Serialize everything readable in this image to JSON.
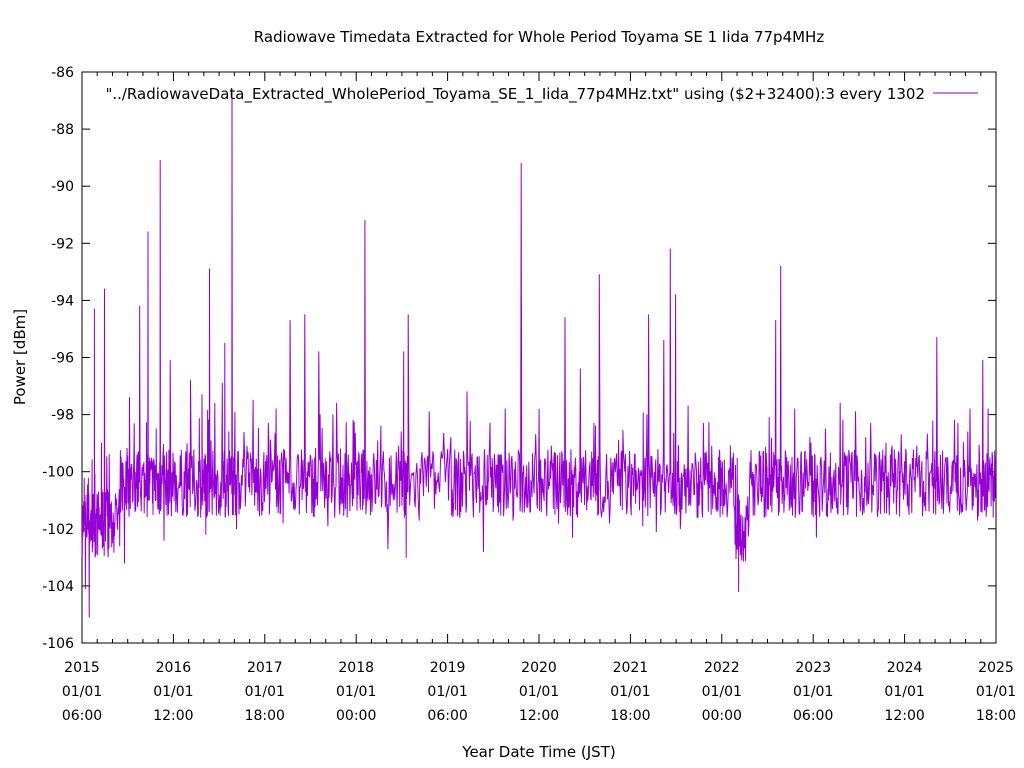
{
  "chart_data": {
    "type": "line",
    "title": "Radiowave Timedata Extracted for Whole Period Toyama SE 1 Iida 77p4MHz",
    "xlabel": "Year Date Time (JST)",
    "ylabel": "Power [dBm]",
    "ylim": [
      -106,
      -86
    ],
    "y_ticks": [
      "-86",
      "-88",
      "-90",
      "-92",
      "-94",
      "-96",
      "-98",
      "-100",
      "-102",
      "-104",
      "-106"
    ],
    "x_ticks": [
      {
        "year": "2015",
        "date": "01/01",
        "time": "06:00"
      },
      {
        "year": "2016",
        "date": "01/01",
        "time": "12:00"
      },
      {
        "year": "2017",
        "date": "01/01",
        "time": "18:00"
      },
      {
        "year": "2018",
        "date": "01/01",
        "time": "00:00"
      },
      {
        "year": "2019",
        "date": "01/01",
        "time": "06:00"
      },
      {
        "year": "2020",
        "date": "01/01",
        "time": "12:00"
      },
      {
        "year": "2021",
        "date": "01/01",
        "time": "18:00"
      },
      {
        "year": "2022",
        "date": "01/01",
        "time": "00:00"
      },
      {
        "year": "2023",
        "date": "01/01",
        "time": "06:00"
      },
      {
        "year": "2024",
        "date": "01/01",
        "time": "12:00"
      },
      {
        "year": "2025",
        "date": "01/01",
        "time": "18:00"
      }
    ],
    "xlim": [
      "2015-01-01 06:00",
      "2025-01-01 18:00"
    ],
    "grid": false,
    "legend_position": "top-right",
    "series": [
      {
        "name": "\"../RadiowaveData_Extracted_WholePeriod_Toyama_SE_1_Iida_77p4MHz.txt\" using ($2+32400):3 every 1302",
        "color": "#9400d3",
        "baseline": -100.4,
        "points": [
          [
            "2015-01-01",
            -102.3
          ],
          [
            "2015-01-15",
            -104.1
          ],
          [
            "2015-01-30",
            -105.1
          ],
          [
            "2015-02-10",
            -101.2
          ],
          [
            "2015-02-20",
            -94.3
          ],
          [
            "2015-03-01",
            -101.5
          ],
          [
            "2015-03-20",
            -99.0
          ],
          [
            "2015-04-01",
            -93.6
          ],
          [
            "2015-04-20",
            -99.4
          ],
          [
            "2015-05-10",
            -101.8
          ],
          [
            "2015-06-01",
            -102.6
          ],
          [
            "2015-06-20",
            -103.2
          ],
          [
            "2015-07-10",
            -97.4
          ],
          [
            "2015-08-01",
            -101.4
          ],
          [
            "2015-08-20",
            -94.2
          ],
          [
            "2015-09-10",
            -100.9
          ],
          [
            "2015-09-22",
            -91.6
          ],
          [
            "2015-10-10",
            -101.1
          ],
          [
            "2015-10-25",
            -98.5
          ],
          [
            "2015-11-10",
            -89.1
          ],
          [
            "2015-11-25",
            -102.4
          ],
          [
            "2015-12-20",
            -96.1
          ],
          [
            "2016-01-20",
            -100.6
          ],
          [
            "2016-02-20",
            -99.3
          ],
          [
            "2016-03-10",
            -96.8
          ],
          [
            "2016-04-10",
            -101.5
          ],
          [
            "2016-04-25",
            -97.3
          ],
          [
            "2016-05-10",
            -102.2
          ],
          [
            "2016-05-25",
            -92.9
          ],
          [
            "2016-06-15",
            -97.6
          ],
          [
            "2016-07-15",
            -96.9
          ],
          [
            "2016-07-25",
            -95.5
          ],
          [
            "2016-08-10",
            -98.6
          ],
          [
            "2016-08-23",
            -86.6
          ],
          [
            "2016-09-10",
            -102.0
          ],
          [
            "2016-10-15",
            -101.2
          ],
          [
            "2016-11-15",
            -97.5
          ],
          [
            "2016-12-15",
            -99.9
          ],
          [
            "2017-01-15",
            -98.3
          ],
          [
            "2017-02-15",
            -97.8
          ],
          [
            "2017-03-15",
            -101.8
          ],
          [
            "2017-04-12",
            -94.7
          ],
          [
            "2017-05-15",
            -99.4
          ],
          [
            "2017-06-10",
            -94.5
          ],
          [
            "2017-07-10",
            -100.9
          ],
          [
            "2017-08-05",
            -95.8
          ],
          [
            "2017-09-10",
            -101.9
          ],
          [
            "2017-10-15",
            -97.6
          ],
          [
            "2017-11-20",
            -101.3
          ],
          [
            "2017-12-20",
            -98.2
          ],
          [
            "2018-01-20",
            -100.4
          ],
          [
            "2018-02-05",
            -91.2
          ],
          [
            "2018-03-05",
            -101.4
          ],
          [
            "2018-04-10",
            -98.4
          ],
          [
            "2018-05-08",
            -102.7
          ],
          [
            "2018-06-20",
            -99.1
          ],
          [
            "2018-07-10",
            -95.8
          ],
          [
            "2018-07-20",
            -103.0
          ],
          [
            "2018-07-28",
            -94.5
          ],
          [
            "2018-09-10",
            -101.7
          ],
          [
            "2018-10-20",
            -97.9
          ],
          [
            "2018-12-01",
            -100.7
          ],
          [
            "2019-01-15",
            -98.8
          ],
          [
            "2019-02-20",
            -101.6
          ],
          [
            "2019-03-20",
            -97.2
          ],
          [
            "2019-04-25",
            -100.9
          ],
          [
            "2019-05-25",
            -102.8
          ],
          [
            "2019-06-20",
            -98.3
          ],
          [
            "2019-07-20",
            -101.2
          ],
          [
            "2019-08-20",
            -97.8
          ],
          [
            "2019-09-20",
            -101.7
          ],
          [
            "2019-10-23",
            -89.2
          ],
          [
            "2019-11-20",
            -101.0
          ],
          [
            "2019-12-20",
            -98.7
          ],
          [
            "2020-01-20",
            -100.8
          ],
          [
            "2020-02-20",
            -99.1
          ],
          [
            "2020-03-20",
            -101.8
          ],
          [
            "2020-04-15",
            -94.6
          ],
          [
            "2020-05-15",
            -102.3
          ],
          [
            "2020-06-15",
            -96.4
          ],
          [
            "2020-07-15",
            -101.0
          ],
          [
            "2020-08-15",
            -98.4
          ],
          [
            "2020-08-30",
            -93.1
          ],
          [
            "2020-10-10",
            -101.8
          ],
          [
            "2020-11-15",
            -98.9
          ],
          [
            "2020-12-20",
            -101.2
          ],
          [
            "2021-01-20",
            -99.4
          ],
          [
            "2021-02-20",
            -101.9
          ],
          [
            "2021-03-15",
            -94.5
          ],
          [
            "2021-04-15",
            -102.1
          ],
          [
            "2021-05-15",
            -95.4
          ],
          [
            "2021-06-10",
            -92.2
          ],
          [
            "2021-07-01",
            -93.8
          ],
          [
            "2021-07-20",
            -102.0
          ],
          [
            "2021-08-20",
            -97.7
          ],
          [
            "2021-09-25",
            -101.6
          ],
          [
            "2021-10-20",
            -98.3
          ],
          [
            "2021-11-20",
            -101.5
          ],
          [
            "2021-12-20",
            -99.5
          ],
          [
            "2022-01-10",
            -101.2
          ],
          [
            "2022-02-05",
            -99.1
          ],
          [
            "2022-03-01",
            -102.5
          ],
          [
            "2022-03-10",
            -104.2
          ],
          [
            "2022-03-20",
            -102.4
          ],
          [
            "2022-04-20",
            -101.9
          ],
          [
            "2022-05-20",
            -99.8
          ],
          [
            "2022-06-20",
            -101.6
          ],
          [
            "2022-07-10",
            -98.1
          ],
          [
            "2022-08-05",
            -94.7
          ],
          [
            "2022-08-25",
            -92.8
          ],
          [
            "2022-09-20",
            -100.8
          ],
          [
            "2022-10-20",
            -97.8
          ],
          [
            "2022-11-20",
            -101.4
          ],
          [
            "2022-12-20",
            -98.8
          ],
          [
            "2023-01-15",
            -102.3
          ],
          [
            "2023-02-20",
            -98.5
          ],
          [
            "2023-03-20",
            -101.3
          ],
          [
            "2023-04-20",
            -97.6
          ],
          [
            "2023-05-20",
            -101.5
          ],
          [
            "2023-06-20",
            -97.9
          ],
          [
            "2023-07-20",
            -101.2
          ],
          [
            "2023-08-20",
            -98.3
          ],
          [
            "2023-09-20",
            -101.3
          ],
          [
            "2023-10-20",
            -99.0
          ],
          [
            "2023-11-20",
            -101.1
          ],
          [
            "2023-12-20",
            -98.7
          ],
          [
            "2024-01-20",
            -101.5
          ],
          [
            "2024-02-20",
            -99.1
          ],
          [
            "2024-03-20",
            -101.0
          ],
          [
            "2024-04-20",
            -99.7
          ],
          [
            "2024-05-10",
            -95.3
          ],
          [
            "2024-06-20",
            -101.1
          ],
          [
            "2024-07-20",
            -98.2
          ],
          [
            "2024-08-20",
            -101.4
          ],
          [
            "2024-09-20",
            -97.8
          ],
          [
            "2024-10-20",
            -101.7
          ],
          [
            "2024-11-10",
            -96.1
          ],
          [
            "2024-12-01",
            -97.8
          ],
          [
            "2024-12-20",
            -101.0
          ],
          [
            "2024-12-31",
            -99.5
          ]
        ]
      }
    ]
  }
}
